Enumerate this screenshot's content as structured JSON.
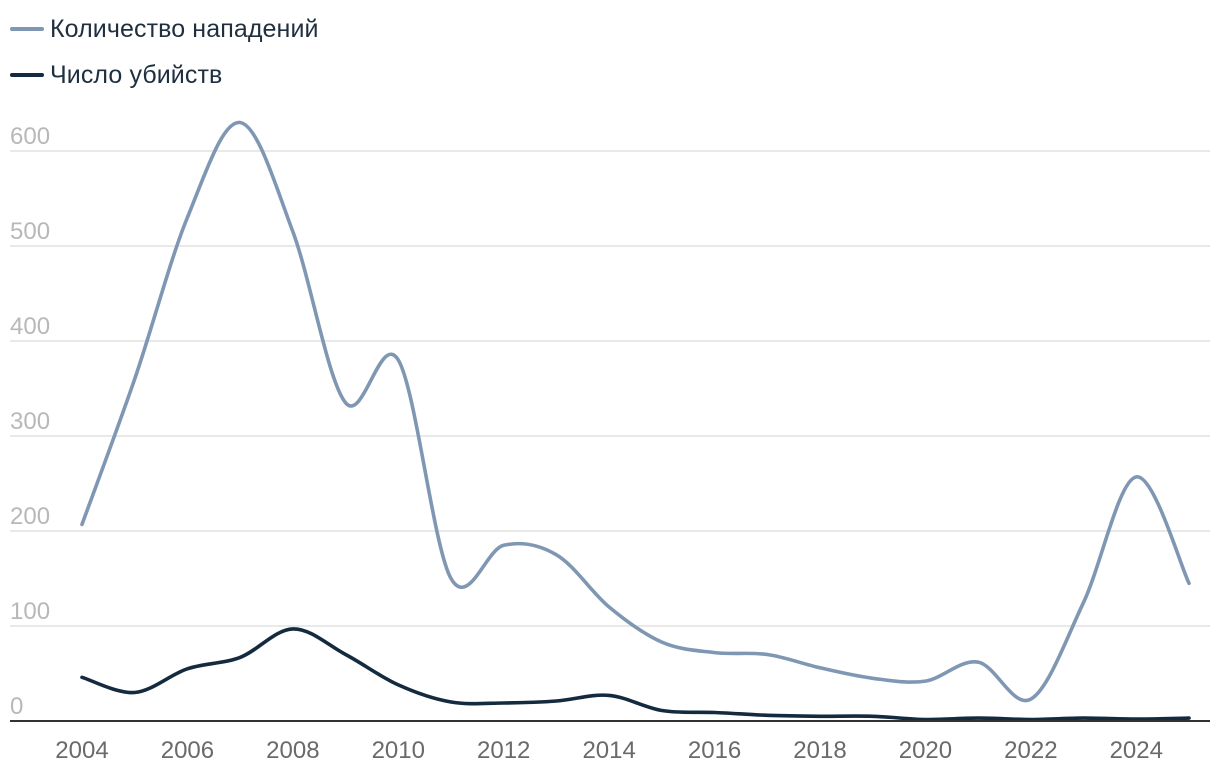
{
  "chart_data": {
    "type": "line",
    "x": [
      2004,
      2005,
      2006,
      2007,
      2008,
      2009,
      2010,
      2011,
      2012,
      2013,
      2014,
      2015,
      2016,
      2017,
      2018,
      2019,
      2020,
      2021,
      2022,
      2023,
      2024,
      2025
    ],
    "series": [
      {
        "name": "Количество нападений",
        "color": "#7f97b3",
        "values": [
          207,
          360,
          530,
          630,
          515,
          335,
          380,
          150,
          185,
          175,
          120,
          83,
          72,
          70,
          56,
          45,
          42,
          62,
          23,
          125,
          257,
          145
        ]
      },
      {
        "name": "Число убийств",
        "color": "#142a3e",
        "values": [
          46,
          30,
          55,
          67,
          97,
          70,
          38,
          20,
          19,
          21,
          27,
          11,
          9,
          6,
          5,
          5,
          1,
          3,
          1,
          3,
          2,
          3
        ]
      }
    ],
    "xticks": [
      "2004",
      "2006",
      "2008",
      "2010",
      "2012",
      "2014",
      "2016",
      "2018",
      "2020",
      "2022",
      "2024"
    ],
    "yticks": [
      "0",
      "100",
      "200",
      "300",
      "400",
      "500",
      "600"
    ],
    "ylim": [
      0,
      640
    ],
    "xlim": [
      2004,
      2025
    ],
    "title": "",
    "xlabel": "",
    "ylabel": "",
    "grid": true,
    "legend": "top-left",
    "colors": {
      "grid": "#e2e2e2",
      "axis": "#333333",
      "ytick": "#b8b8b8",
      "xtick": "#6a6a6a"
    }
  }
}
